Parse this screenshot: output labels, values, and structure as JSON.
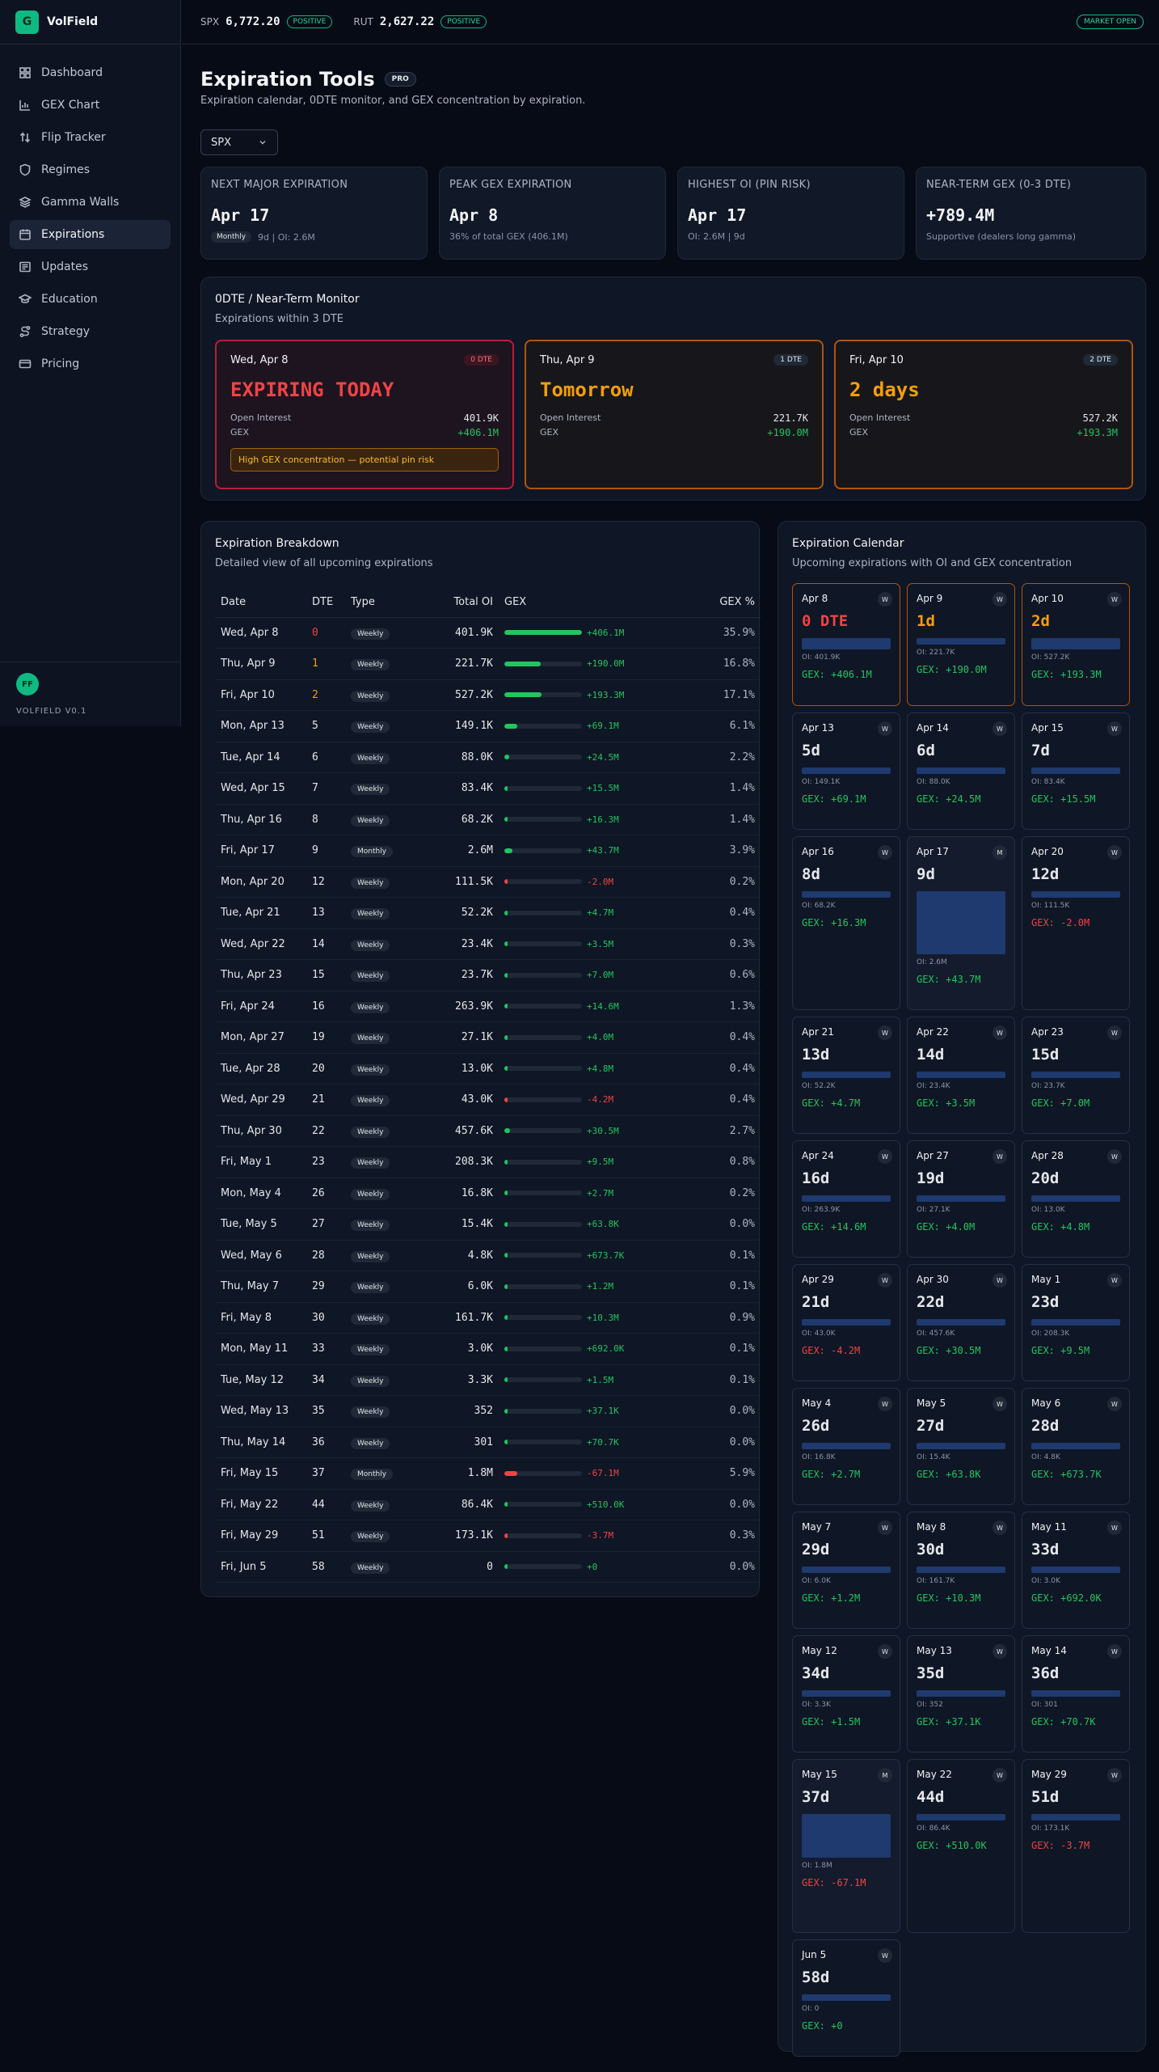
{
  "app": {
    "name": "VolField",
    "logo_letter": "G",
    "version": "VOLFIELD V0.1",
    "avatar": "FF"
  },
  "nav": [
    {
      "label": "Dashboard",
      "icon": "dashboard-icon"
    },
    {
      "label": "GEX Chart",
      "icon": "bar-chart-icon"
    },
    {
      "label": "Flip Tracker",
      "icon": "flip-arrows-icon"
    },
    {
      "label": "Regimes",
      "icon": "shield-icon"
    },
    {
      "label": "Gamma Walls",
      "icon": "layers-icon"
    },
    {
      "label": "Expirations",
      "icon": "calendar-icon",
      "active": true
    },
    {
      "label": "Updates",
      "icon": "newspaper-icon"
    },
    {
      "label": "Education",
      "icon": "graduation-cap-icon"
    },
    {
      "label": "Strategy",
      "icon": "route-icon"
    },
    {
      "label": "Pricing",
      "icon": "credit-card-icon"
    }
  ],
  "topbar": {
    "tickers": [
      {
        "symbol": "SPX",
        "price": "6,772.20",
        "status": "POSITIVE"
      },
      {
        "symbol": "RUT",
        "price": "2,627.22",
        "status": "POSITIVE"
      }
    ],
    "market_status": "MARKET OPEN"
  },
  "page": {
    "title": "Expiration Tools",
    "badge": "PRO",
    "subtitle": "Expiration calendar, 0DTE monitor, and GEX concentration by expiration.",
    "symbol": "SPX"
  },
  "stats": [
    {
      "label": "NEXT MAJOR EXPIRATION",
      "value": "Apr 17",
      "tag": "Monthly",
      "sub": "9d | OI: 2.6M"
    },
    {
      "label": "PEAK GEX EXPIRATION",
      "value": "Apr 8",
      "sub": "36% of total GEX (406.1M)"
    },
    {
      "label": "HIGHEST OI (PIN RISK)",
      "value": "Apr 17",
      "sub": "OI: 2.6M | 9d"
    },
    {
      "label": "NEAR-TERM GEX (0-3 DTE)",
      "value": "+789.4M",
      "sub": "Supportive (dealers long gamma)"
    }
  ],
  "monitor": {
    "title": "0DTE / Near-Term Monitor",
    "subtitle": "Expirations within 3 DTE",
    "oi_label": "Open Interest",
    "gex_label": "GEX",
    "cards": [
      {
        "date": "Wed, Apr 8",
        "badge": "0 DTE",
        "headline": "EXPIRING TODAY",
        "oi": "401.9K",
        "gex": "+406.1M",
        "warning": "High GEX concentration — potential pin risk"
      },
      {
        "date": "Thu, Apr 9",
        "badge": "1 DTE",
        "headline": "Tomorrow",
        "oi": "221.7K",
        "gex": "+190.0M"
      },
      {
        "date": "Fri, Apr 10",
        "badge": "2 DTE",
        "headline": "2 days",
        "oi": "527.2K",
        "gex": "+193.3M"
      }
    ]
  },
  "breakdown": {
    "title": "Expiration Breakdown",
    "subtitle": "Detailed view of all upcoming expirations",
    "columns": [
      "Date",
      "DTE",
      "Type",
      "Total OI",
      "GEX",
      "GEX %"
    ],
    "rows": [
      {
        "date": "Wed, Apr 8",
        "dte": 0,
        "type": "Weekly",
        "oi": "401.9K",
        "gex": "+406.1M",
        "gex_m": 406.1,
        "pct": "35.9%"
      },
      {
        "date": "Thu, Apr 9",
        "dte": 1,
        "type": "Weekly",
        "oi": "221.7K",
        "gex": "+190.0M",
        "gex_m": 190.0,
        "pct": "16.8%"
      },
      {
        "date": "Fri, Apr 10",
        "dte": 2,
        "type": "Weekly",
        "oi": "527.2K",
        "gex": "+193.3M",
        "gex_m": 193.3,
        "pct": "17.1%"
      },
      {
        "date": "Mon, Apr 13",
        "dte": 5,
        "type": "Weekly",
        "oi": "149.1K",
        "gex": "+69.1M",
        "gex_m": 69.1,
        "pct": "6.1%"
      },
      {
        "date": "Tue, Apr 14",
        "dte": 6,
        "type": "Weekly",
        "oi": "88.0K",
        "gex": "+24.5M",
        "gex_m": 24.5,
        "pct": "2.2%"
      },
      {
        "date": "Wed, Apr 15",
        "dte": 7,
        "type": "Weekly",
        "oi": "83.4K",
        "gex": "+15.5M",
        "gex_m": 15.5,
        "pct": "1.4%"
      },
      {
        "date": "Thu, Apr 16",
        "dte": 8,
        "type": "Weekly",
        "oi": "68.2K",
        "gex": "+16.3M",
        "gex_m": 16.3,
        "pct": "1.4%"
      },
      {
        "date": "Fri, Apr 17",
        "dte": 9,
        "type": "Monthly",
        "oi": "2.6M",
        "gex": "+43.7M",
        "gex_m": 43.7,
        "pct": "3.9%"
      },
      {
        "date": "Mon, Apr 20",
        "dte": 12,
        "type": "Weekly",
        "oi": "111.5K",
        "gex": "-2.0M",
        "gex_m": -2.0,
        "pct": "0.2%"
      },
      {
        "date": "Tue, Apr 21",
        "dte": 13,
        "type": "Weekly",
        "oi": "52.2K",
        "gex": "+4.7M",
        "gex_m": 4.7,
        "pct": "0.4%"
      },
      {
        "date": "Wed, Apr 22",
        "dte": 14,
        "type": "Weekly",
        "oi": "23.4K",
        "gex": "+3.5M",
        "gex_m": 3.5,
        "pct": "0.3%"
      },
      {
        "date": "Thu, Apr 23",
        "dte": 15,
        "type": "Weekly",
        "oi": "23.7K",
        "gex": "+7.0M",
        "gex_m": 7.0,
        "pct": "0.6%"
      },
      {
        "date": "Fri, Apr 24",
        "dte": 16,
        "type": "Weekly",
        "oi": "263.9K",
        "gex": "+14.6M",
        "gex_m": 14.6,
        "pct": "1.3%"
      },
      {
        "date": "Mon, Apr 27",
        "dte": 19,
        "type": "Weekly",
        "oi": "27.1K",
        "gex": "+4.0M",
        "gex_m": 4.0,
        "pct": "0.4%"
      },
      {
        "date": "Tue, Apr 28",
        "dte": 20,
        "type": "Weekly",
        "oi": "13.0K",
        "gex": "+4.8M",
        "gex_m": 4.8,
        "pct": "0.4%"
      },
      {
        "date": "Wed, Apr 29",
        "dte": 21,
        "type": "Weekly",
        "oi": "43.0K",
        "gex": "-4.2M",
        "gex_m": -4.2,
        "pct": "0.4%"
      },
      {
        "date": "Thu, Apr 30",
        "dte": 22,
        "type": "Weekly",
        "oi": "457.6K",
        "gex": "+30.5M",
        "gex_m": 30.5,
        "pct": "2.7%"
      },
      {
        "date": "Fri, May 1",
        "dte": 23,
        "type": "Weekly",
        "oi": "208.3K",
        "gex": "+9.5M",
        "gex_m": 9.5,
        "pct": "0.8%"
      },
      {
        "date": "Mon, May 4",
        "dte": 26,
        "type": "Weekly",
        "oi": "16.8K",
        "gex": "+2.7M",
        "gex_m": 2.7,
        "pct": "0.2%"
      },
      {
        "date": "Tue, May 5",
        "dte": 27,
        "type": "Weekly",
        "oi": "15.4K",
        "gex": "+63.8K",
        "gex_m": 0.0638,
        "pct": "0.0%"
      },
      {
        "date": "Wed, May 6",
        "dte": 28,
        "type": "Weekly",
        "oi": "4.8K",
        "gex": "+673.7K",
        "gex_m": 0.6737,
        "pct": "0.1%"
      },
      {
        "date": "Thu, May 7",
        "dte": 29,
        "type": "Weekly",
        "oi": "6.0K",
        "gex": "+1.2M",
        "gex_m": 1.2,
        "pct": "0.1%"
      },
      {
        "date": "Fri, May 8",
        "dte": 30,
        "type": "Weekly",
        "oi": "161.7K",
        "gex": "+10.3M",
        "gex_m": 10.3,
        "pct": "0.9%"
      },
      {
        "date": "Mon, May 11",
        "dte": 33,
        "type": "Weekly",
        "oi": "3.0K",
        "gex": "+692.0K",
        "gex_m": 0.692,
        "pct": "0.1%"
      },
      {
        "date": "Tue, May 12",
        "dte": 34,
        "type": "Weekly",
        "oi": "3.3K",
        "gex": "+1.5M",
        "gex_m": 1.5,
        "pct": "0.1%"
      },
      {
        "date": "Wed, May 13",
        "dte": 35,
        "type": "Weekly",
        "oi": "352",
        "gex": "+37.1K",
        "gex_m": 0.0371,
        "pct": "0.0%"
      },
      {
        "date": "Thu, May 14",
        "dte": 36,
        "type": "Weekly",
        "oi": "301",
        "gex": "+70.7K",
        "gex_m": 0.0707,
        "pct": "0.0%"
      },
      {
        "date": "Fri, May 15",
        "dte": 37,
        "type": "Monthly",
        "oi": "1.8M",
        "gex": "-67.1M",
        "gex_m": -67.1,
        "pct": "5.9%"
      },
      {
        "date": "Fri, May 22",
        "dte": 44,
        "type": "Weekly",
        "oi": "86.4K",
        "gex": "+510.0K",
        "gex_m": 0.51,
        "pct": "0.0%"
      },
      {
        "date": "Fri, May 29",
        "dte": 51,
        "type": "Weekly",
        "oi": "173.1K",
        "gex": "-3.7M",
        "gex_m": -3.7,
        "pct": "0.3%"
      },
      {
        "date": "Fri, Jun 5",
        "dte": 58,
        "type": "Weekly",
        "oi": "0",
        "gex": "+0",
        "gex_m": 0,
        "pct": "0.0%"
      }
    ]
  },
  "calendar": {
    "title": "Expiration Calendar",
    "subtitle": "Upcoming expirations with OI and GEX concentration",
    "cells": [
      {
        "date": "Apr 8",
        "type": "W",
        "dte": "0 DTE",
        "oi": "OI: 401.9K",
        "gex": "GEX: +406.1M",
        "oi_k": 401.9
      },
      {
        "date": "Apr 9",
        "type": "W",
        "dte": "1d",
        "oi": "OI: 221.7K",
        "gex": "GEX: +190.0M",
        "oi_k": 221.7
      },
      {
        "date": "Apr 10",
        "type": "W",
        "dte": "2d",
        "oi": "OI: 527.2K",
        "gex": "GEX: +193.3M",
        "oi_k": 527.2
      },
      {
        "date": "Apr 13",
        "type": "W",
        "dte": "5d",
        "oi": "OI: 149.1K",
        "gex": "GEX: +69.1M",
        "oi_k": 149.1
      },
      {
        "date": "Apr 14",
        "type": "W",
        "dte": "6d",
        "oi": "OI: 88.0K",
        "gex": "GEX: +24.5M",
        "oi_k": 88.0
      },
      {
        "date": "Apr 15",
        "type": "W",
        "dte": "7d",
        "oi": "OI: 83.4K",
        "gex": "GEX: +15.5M",
        "oi_k": 83.4
      },
      {
        "date": "Apr 16",
        "type": "W",
        "dte": "8d",
        "oi": "OI: 68.2K",
        "gex": "GEX: +16.3M",
        "oi_k": 68.2
      },
      {
        "date": "Apr 17",
        "type": "M",
        "dte": "9d",
        "oi": "OI: 2.6M",
        "gex": "GEX: +43.7M",
        "oi_k": 2600
      },
      {
        "date": "Apr 20",
        "type": "W",
        "dte": "12d",
        "oi": "OI: 111.5K",
        "gex": "GEX: -2.0M",
        "oi_k": 111.5
      },
      {
        "date": "Apr 21",
        "type": "W",
        "dte": "13d",
        "oi": "OI: 52.2K",
        "gex": "GEX: +4.7M",
        "oi_k": 52.2
      },
      {
        "date": "Apr 22",
        "type": "W",
        "dte": "14d",
        "oi": "OI: 23.4K",
        "gex": "GEX: +3.5M",
        "oi_k": 23.4
      },
      {
        "date": "Apr 23",
        "type": "W",
        "dte": "15d",
        "oi": "OI: 23.7K",
        "gex": "GEX: +7.0M",
        "oi_k": 23.7
      },
      {
        "date": "Apr 24",
        "type": "W",
        "dte": "16d",
        "oi": "OI: 263.9K",
        "gex": "GEX: +14.6M",
        "oi_k": 263.9
      },
      {
        "date": "Apr 27",
        "type": "W",
        "dte": "19d",
        "oi": "OI: 27.1K",
        "gex": "GEX: +4.0M",
        "oi_k": 27.1
      },
      {
        "date": "Apr 28",
        "type": "W",
        "dte": "20d",
        "oi": "OI: 13.0K",
        "gex": "GEX: +4.8M",
        "oi_k": 13.0
      },
      {
        "date": "Apr 29",
        "type": "W",
        "dte": "21d",
        "oi": "OI: 43.0K",
        "gex": "GEX: -4.2M",
        "oi_k": 43.0
      },
      {
        "date": "Apr 30",
        "type": "W",
        "dte": "22d",
        "oi": "OI: 457.6K",
        "gex": "GEX: +30.5M",
        "oi_k": 457.6
      },
      {
        "date": "May 1",
        "type": "W",
        "dte": "23d",
        "oi": "OI: 208.3K",
        "gex": "GEX: +9.5M",
        "oi_k": 208.3
      },
      {
        "date": "May 4",
        "type": "W",
        "dte": "26d",
        "oi": "OI: 16.8K",
        "gex": "GEX: +2.7M",
        "oi_k": 16.8
      },
      {
        "date": "May 5",
        "type": "W",
        "dte": "27d",
        "oi": "OI: 15.4K",
        "gex": "GEX: +63.8K",
        "oi_k": 15.4
      },
      {
        "date": "May 6",
        "type": "W",
        "dte": "28d",
        "oi": "OI: 4.8K",
        "gex": "GEX: +673.7K",
        "oi_k": 4.8
      },
      {
        "date": "May 7",
        "type": "W",
        "dte": "29d",
        "oi": "OI: 6.0K",
        "gex": "GEX: +1.2M",
        "oi_k": 6.0
      },
      {
        "date": "May 8",
        "type": "W",
        "dte": "30d",
        "oi": "OI: 161.7K",
        "gex": "GEX: +10.3M",
        "oi_k": 161.7
      },
      {
        "date": "May 11",
        "type": "W",
        "dte": "33d",
        "oi": "OI: 3.0K",
        "gex": "GEX: +692.0K",
        "oi_k": 3.0
      },
      {
        "date": "May 12",
        "type": "W",
        "dte": "34d",
        "oi": "OI: 3.3K",
        "gex": "GEX: +1.5M",
        "oi_k": 3.3
      },
      {
        "date": "May 13",
        "type": "W",
        "dte": "35d",
        "oi": "OI: 352",
        "gex": "GEX: +37.1K",
        "oi_k": 0.352
      },
      {
        "date": "May 14",
        "type": "W",
        "dte": "36d",
        "oi": "OI: 301",
        "gex": "GEX: +70.7K",
        "oi_k": 0.301
      },
      {
        "date": "May 15",
        "type": "M",
        "dte": "37d",
        "oi": "OI: 1.8M",
        "gex": "GEX: -67.1M",
        "oi_k": 1800
      },
      {
        "date": "May 22",
        "type": "W",
        "dte": "44d",
        "oi": "OI: 86.4K",
        "gex": "GEX: +510.0K",
        "oi_k": 86.4
      },
      {
        "date": "May 29",
        "type": "W",
        "dte": "51d",
        "oi": "OI: 173.1K",
        "gex": "GEX: -3.7M",
        "oi_k": 173.1
      },
      {
        "date": "Jun 5",
        "type": "W",
        "dte": "58d",
        "oi": "OI: 0",
        "gex": "GEX: +0",
        "oi_k": 0
      }
    ]
  },
  "colors": {
    "accent": "#10b981",
    "positive": "#22c55e",
    "negative": "#ef4444",
    "warning": "#f59e0b",
    "bar": "#1e3a6e"
  }
}
